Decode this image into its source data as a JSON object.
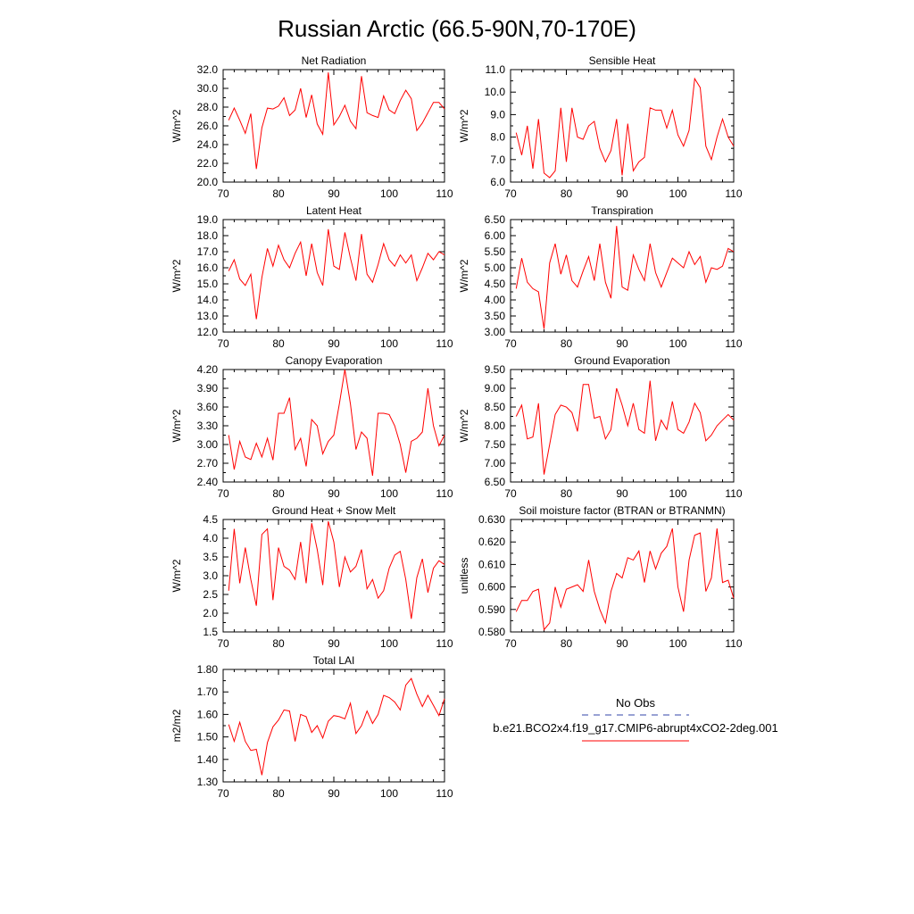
{
  "title": "Russian Arctic (66.5-90N,70-170E)",
  "legend": {
    "obs_label": "No Obs",
    "obs_color": "#3344aa",
    "model_label": "b.e21.BCO2x4.f19_g17.CMIP6-abrupt4xCO2-2deg.001",
    "model_color": "#ff0000"
  },
  "chart_data": [
    {
      "type": "line",
      "title": "Net Radiation",
      "ylabel": "W/m^2",
      "xlim": [
        70,
        110
      ],
      "ylim": [
        20.0,
        32.0
      ],
      "xticks": [
        "70",
        "80",
        "90",
        "100",
        "110"
      ],
      "yticks": [
        "20.0",
        "22.0",
        "24.0",
        "26.0",
        "28.0",
        "30.0",
        "32.0"
      ],
      "x": [
        71,
        72,
        73,
        74,
        75,
        76,
        77,
        78,
        79,
        80,
        81,
        82,
        83,
        84,
        85,
        86,
        87,
        88,
        89,
        90,
        91,
        92,
        93,
        94,
        95,
        96,
        97,
        98,
        99,
        100,
        101,
        102,
        103,
        104,
        105,
        106,
        107,
        108,
        109,
        110
      ],
      "series": [
        {
          "name": "b.e21.BCO2x4.f19_g17.CMIP6-abrupt4xCO2-2deg.001",
          "values": [
            26.6,
            27.9,
            26.6,
            25.2,
            27.3,
            21.4,
            25.8,
            27.9,
            27.8,
            28.1,
            29.0,
            27.1,
            27.7,
            30.0,
            26.9,
            29.3,
            26.2,
            25.1,
            31.7,
            26.1,
            27.0,
            28.2,
            26.5,
            25.7,
            31.3,
            27.4,
            27.1,
            26.9,
            29.2,
            27.7,
            27.3,
            28.7,
            29.8,
            28.9,
            25.5,
            26.3,
            27.4,
            28.5,
            28.5,
            27.8
          ]
        }
      ]
    },
    {
      "type": "line",
      "title": "Sensible Heat",
      "ylabel": "W/m^2",
      "xlim": [
        70,
        110
      ],
      "ylim": [
        6.0,
        11.0
      ],
      "xticks": [
        "70",
        "80",
        "90",
        "100",
        "110"
      ],
      "yticks": [
        "6.0",
        "7.0",
        "8.0",
        "9.0",
        "10.0",
        "11.0"
      ],
      "x": [
        71,
        72,
        73,
        74,
        75,
        76,
        77,
        78,
        79,
        80,
        81,
        82,
        83,
        84,
        85,
        86,
        87,
        88,
        89,
        90,
        91,
        92,
        93,
        94,
        95,
        96,
        97,
        98,
        99,
        100,
        101,
        102,
        103,
        104,
        105,
        106,
        107,
        108,
        109,
        110
      ],
      "series": [
        {
          "name": "b.e21.BCO2x4.f19_g17.CMIP6-abrupt4xCO2-2deg.001",
          "values": [
            8.2,
            7.2,
            8.5,
            6.6,
            8.8,
            6.4,
            6.2,
            6.5,
            9.3,
            6.9,
            9.3,
            8.0,
            7.9,
            8.5,
            8.7,
            7.5,
            6.9,
            7.4,
            8.8,
            6.3,
            8.6,
            6.5,
            6.9,
            7.1,
            9.3,
            9.2,
            9.2,
            8.4,
            9.2,
            8.1,
            7.6,
            8.3,
            10.6,
            10.2,
            7.6,
            7.0,
            8.0,
            8.8,
            8.0,
            7.6
          ]
        }
      ]
    },
    {
      "type": "line",
      "title": "Latent Heat",
      "ylabel": "W/m^2",
      "xlim": [
        70,
        110
      ],
      "ylim": [
        12.0,
        19.0
      ],
      "xticks": [
        "70",
        "80",
        "90",
        "100",
        "110"
      ],
      "yticks": [
        "12.0",
        "13.0",
        "14.0",
        "15.0",
        "16.0",
        "17.0",
        "18.0",
        "19.0"
      ],
      "x": [
        71,
        72,
        73,
        74,
        75,
        76,
        77,
        78,
        79,
        80,
        81,
        82,
        83,
        84,
        85,
        86,
        87,
        88,
        89,
        90,
        91,
        92,
        93,
        94,
        95,
        96,
        97,
        98,
        99,
        100,
        101,
        102,
        103,
        104,
        105,
        106,
        107,
        108,
        109,
        110
      ],
      "series": [
        {
          "name": "b.e21.BCO2x4.f19_g17.CMIP6-abrupt4xCO2-2deg.001",
          "values": [
            15.8,
            16.5,
            15.3,
            14.9,
            15.6,
            12.8,
            15.4,
            17.2,
            16.1,
            17.4,
            16.5,
            16.0,
            16.9,
            17.6,
            15.5,
            17.5,
            15.7,
            14.9,
            18.4,
            16.1,
            15.9,
            18.2,
            16.6,
            15.2,
            18.1,
            15.6,
            15.1,
            16.2,
            17.5,
            16.5,
            16.1,
            16.8,
            16.3,
            16.8,
            15.2,
            16.0,
            16.9,
            16.5,
            17.0,
            16.8
          ]
        }
      ]
    },
    {
      "type": "line",
      "title": "Transpiration",
      "ylabel": "W/m^2",
      "xlim": [
        70,
        110
      ],
      "ylim": [
        3.0,
        6.5
      ],
      "xticks": [
        "70",
        "80",
        "90",
        "100",
        "110"
      ],
      "yticks": [
        "3.00",
        "3.50",
        "4.00",
        "4.50",
        "5.00",
        "5.50",
        "6.00",
        "6.50"
      ],
      "x": [
        71,
        72,
        73,
        74,
        75,
        76,
        77,
        78,
        79,
        80,
        81,
        82,
        83,
        84,
        85,
        86,
        87,
        88,
        89,
        90,
        91,
        92,
        93,
        94,
        95,
        96,
        97,
        98,
        99,
        100,
        101,
        102,
        103,
        104,
        105,
        106,
        107,
        108,
        109,
        110
      ],
      "series": [
        {
          "name": "b.e21.BCO2x4.f19_g17.CMIP6-abrupt4xCO2-2deg.001",
          "values": [
            4.35,
            5.3,
            4.55,
            4.35,
            4.25,
            3.1,
            5.15,
            5.75,
            4.8,
            5.4,
            4.6,
            4.4,
            4.9,
            5.35,
            4.6,
            5.75,
            4.55,
            4.05,
            6.3,
            4.4,
            4.3,
            5.4,
            4.95,
            4.6,
            5.75,
            4.85,
            4.4,
            4.85,
            5.3,
            5.15,
            5.0,
            5.5,
            5.1,
            5.35,
            4.55,
            5.0,
            4.95,
            5.05,
            5.6,
            5.5
          ]
        }
      ]
    },
    {
      "type": "line",
      "title": "Canopy Evaporation",
      "ylabel": "W/m^2",
      "xlim": [
        70,
        110
      ],
      "ylim": [
        2.4,
        4.2
      ],
      "xticks": [
        "70",
        "80",
        "90",
        "100",
        "110"
      ],
      "yticks": [
        "2.40",
        "2.70",
        "3.00",
        "3.30",
        "3.60",
        "3.90",
        "4.20"
      ],
      "x": [
        71,
        72,
        73,
        74,
        75,
        76,
        77,
        78,
        79,
        80,
        81,
        82,
        83,
        84,
        85,
        86,
        87,
        88,
        89,
        90,
        91,
        92,
        93,
        94,
        95,
        96,
        97,
        98,
        99,
        100,
        101,
        102,
        103,
        104,
        105,
        106,
        107,
        108,
        109,
        110
      ],
      "series": [
        {
          "name": "b.e21.BCO2x4.f19_g17.CMIP6-abrupt4xCO2-2deg.001",
          "values": [
            3.15,
            2.6,
            3.05,
            2.8,
            2.76,
            3.02,
            2.8,
            3.1,
            2.75,
            3.5,
            3.5,
            3.75,
            2.92,
            3.1,
            2.65,
            3.4,
            3.3,
            2.85,
            3.05,
            3.15,
            3.65,
            4.2,
            3.65,
            2.92,
            3.2,
            3.1,
            2.5,
            3.5,
            3.5,
            3.48,
            3.3,
            3.0,
            2.55,
            3.05,
            3.1,
            3.2,
            3.9,
            3.3,
            2.98,
            3.15
          ]
        }
      ]
    },
    {
      "type": "line",
      "title": "Ground Evaporation",
      "ylabel": "W/m^2",
      "xlim": [
        70,
        110
      ],
      "ylim": [
        6.5,
        9.5
      ],
      "xticks": [
        "70",
        "80",
        "90",
        "100",
        "110"
      ],
      "yticks": [
        "6.50",
        "7.00",
        "7.50",
        "8.00",
        "8.50",
        "9.00",
        "9.50"
      ],
      "x": [
        71,
        72,
        73,
        74,
        75,
        76,
        77,
        78,
        79,
        80,
        81,
        82,
        83,
        84,
        85,
        86,
        87,
        88,
        89,
        90,
        91,
        92,
        93,
        94,
        95,
        96,
        97,
        98,
        99,
        100,
        101,
        102,
        103,
        104,
        105,
        106,
        107,
        108,
        109,
        110
      ],
      "series": [
        {
          "name": "b.e21.BCO2x4.f19_g17.CMIP6-abrupt4xCO2-2deg.001",
          "values": [
            8.25,
            8.55,
            7.65,
            7.7,
            8.6,
            6.7,
            7.5,
            8.3,
            8.55,
            8.5,
            8.35,
            7.85,
            9.1,
            9.1,
            8.2,
            8.25,
            7.65,
            7.9,
            9.0,
            8.55,
            8.0,
            8.6,
            7.9,
            7.8,
            9.2,
            7.6,
            8.15,
            7.9,
            8.65,
            7.9,
            7.8,
            8.1,
            8.6,
            8.35,
            7.6,
            7.75,
            8.0,
            8.15,
            8.3,
            8.15
          ]
        }
      ]
    },
    {
      "type": "line",
      "title": "Ground Heat + Snow Melt",
      "ylabel": "W/m^2",
      "xlim": [
        70,
        110
      ],
      "ylim": [
        1.5,
        4.5
      ],
      "xticks": [
        "70",
        "80",
        "90",
        "100",
        "110"
      ],
      "yticks": [
        "1.5",
        "2.0",
        "2.5",
        "3.0",
        "3.5",
        "4.0",
        "4.5"
      ],
      "x": [
        71,
        72,
        73,
        74,
        75,
        76,
        77,
        78,
        79,
        80,
        81,
        82,
        83,
        84,
        85,
        86,
        87,
        88,
        89,
        90,
        91,
        92,
        93,
        94,
        95,
        96,
        97,
        98,
        99,
        100,
        101,
        102,
        103,
        104,
        105,
        106,
        107,
        108,
        109,
        110
      ],
      "series": [
        {
          "name": "b.e21.BCO2x4.f19_g17.CMIP6-abrupt4xCO2-2deg.001",
          "values": [
            2.6,
            4.25,
            2.8,
            3.75,
            2.9,
            2.2,
            4.1,
            4.25,
            2.35,
            3.75,
            3.25,
            3.15,
            2.9,
            3.9,
            2.8,
            4.4,
            3.7,
            2.75,
            4.45,
            3.9,
            2.7,
            3.5,
            3.1,
            3.25,
            3.7,
            2.65,
            2.9,
            2.4,
            2.6,
            3.2,
            3.55,
            3.65,
            2.9,
            1.85,
            2.95,
            3.45,
            2.55,
            3.2,
            3.4,
            3.3
          ]
        }
      ]
    },
    {
      "type": "line",
      "title": "Soil moisture factor (BTRAN or BTRANMN)",
      "ylabel": "unitless",
      "xlim": [
        70,
        110
      ],
      "ylim": [
        0.58,
        0.63
      ],
      "xticks": [
        "70",
        "80",
        "90",
        "100",
        "110"
      ],
      "yticks": [
        "0.580",
        "0.590",
        "0.600",
        "0.610",
        "0.620",
        "0.630"
      ],
      "x": [
        71,
        72,
        73,
        74,
        75,
        76,
        77,
        78,
        79,
        80,
        81,
        82,
        83,
        84,
        85,
        86,
        87,
        88,
        89,
        90,
        91,
        92,
        93,
        94,
        95,
        96,
        97,
        98,
        99,
        100,
        101,
        102,
        103,
        104,
        105,
        106,
        107,
        108,
        109,
        110
      ],
      "series": [
        {
          "name": "b.e21.BCO2x4.f19_g17.CMIP6-abrupt4xCO2-2deg.001",
          "values": [
            0.589,
            0.594,
            0.594,
            0.598,
            0.599,
            0.581,
            0.584,
            0.6,
            0.591,
            0.599,
            0.6,
            0.601,
            0.598,
            0.612,
            0.598,
            0.59,
            0.584,
            0.598,
            0.606,
            0.604,
            0.613,
            0.612,
            0.616,
            0.602,
            0.616,
            0.608,
            0.615,
            0.618,
            0.626,
            0.6,
            0.589,
            0.612,
            0.623,
            0.624,
            0.598,
            0.604,
            0.626,
            0.602,
            0.603,
            0.595
          ]
        }
      ]
    },
    {
      "type": "line",
      "title": "Total LAI",
      "ylabel": "m2/m2",
      "xlim": [
        70,
        110
      ],
      "ylim": [
        1.3,
        1.8
      ],
      "xticks": [
        "70",
        "80",
        "90",
        "100",
        "110"
      ],
      "yticks": [
        "1.30",
        "1.40",
        "1.50",
        "1.60",
        "1.70",
        "1.80"
      ],
      "x": [
        71,
        72,
        73,
        74,
        75,
        76,
        77,
        78,
        79,
        80,
        81,
        82,
        83,
        84,
        85,
        86,
        87,
        88,
        89,
        90,
        91,
        92,
        93,
        94,
        95,
        96,
        97,
        98,
        99,
        100,
        101,
        102,
        103,
        104,
        105,
        106,
        107,
        108,
        109,
        110
      ],
      "series": [
        {
          "name": "b.e21.BCO2x4.f19_g17.CMIP6-abrupt4xCO2-2deg.001",
          "values": [
            1.555,
            1.48,
            1.565,
            1.48,
            1.44,
            1.445,
            1.33,
            1.475,
            1.545,
            1.575,
            1.62,
            1.615,
            1.48,
            1.6,
            1.59,
            1.52,
            1.55,
            1.495,
            1.57,
            1.595,
            1.59,
            1.58,
            1.65,
            1.515,
            1.55,
            1.615,
            1.56,
            1.6,
            1.685,
            1.675,
            1.655,
            1.62,
            1.73,
            1.76,
            1.69,
            1.635,
            1.685,
            1.64,
            1.595,
            1.67
          ]
        }
      ]
    }
  ]
}
